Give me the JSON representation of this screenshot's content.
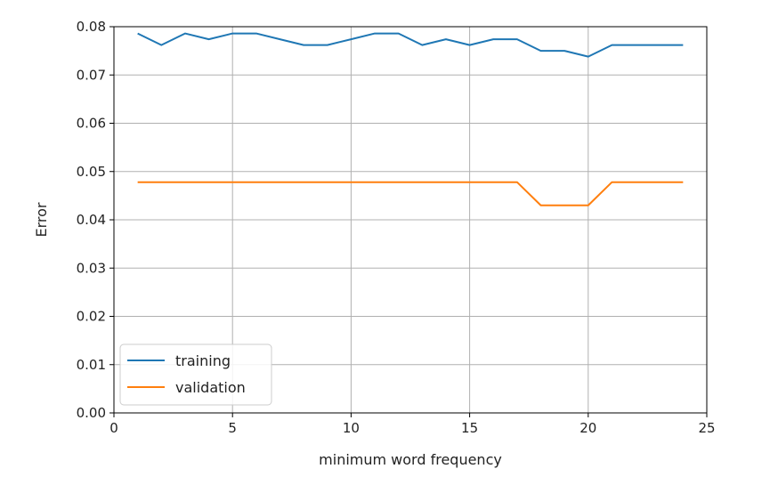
{
  "chart_data": {
    "type": "line",
    "title": "",
    "xlabel": "minimum word frequency",
    "ylabel": "Error",
    "xlim": [
      0,
      25
    ],
    "ylim": [
      0,
      0.08
    ],
    "x_ticks": [
      "0",
      "5",
      "10",
      "15",
      "20",
      "25"
    ],
    "y_ticks": [
      "0.00",
      "0.01",
      "0.02",
      "0.03",
      "0.04",
      "0.05",
      "0.06",
      "0.07",
      "0.08"
    ],
    "grid": true,
    "legend_position": "lower-left",
    "x": [
      1,
      2,
      3,
      4,
      5,
      6,
      7,
      8,
      9,
      10,
      11,
      12,
      13,
      14,
      15,
      16,
      17,
      18,
      19,
      20,
      21,
      22,
      23,
      24
    ],
    "series": [
      {
        "name": "training",
        "color": "#1f77b4",
        "values": [
          0.0786,
          0.0762,
          0.0786,
          0.0774,
          0.0786,
          0.0786,
          0.0774,
          0.0762,
          0.0762,
          0.0774,
          0.0786,
          0.0786,
          0.0762,
          0.0774,
          0.0762,
          0.0774,
          0.0774,
          0.075,
          0.075,
          0.0738,
          0.0762,
          0.0762,
          0.0762,
          0.0762
        ]
      },
      {
        "name": "validation",
        "color": "#ff7f0e",
        "values": [
          0.0478,
          0.0478,
          0.0478,
          0.0478,
          0.0478,
          0.0478,
          0.0478,
          0.0478,
          0.0478,
          0.0478,
          0.0478,
          0.0478,
          0.0478,
          0.0478,
          0.0478,
          0.0478,
          0.0478,
          0.043,
          0.043,
          0.043,
          0.0478,
          0.0478,
          0.0478,
          0.0478
        ]
      }
    ]
  }
}
